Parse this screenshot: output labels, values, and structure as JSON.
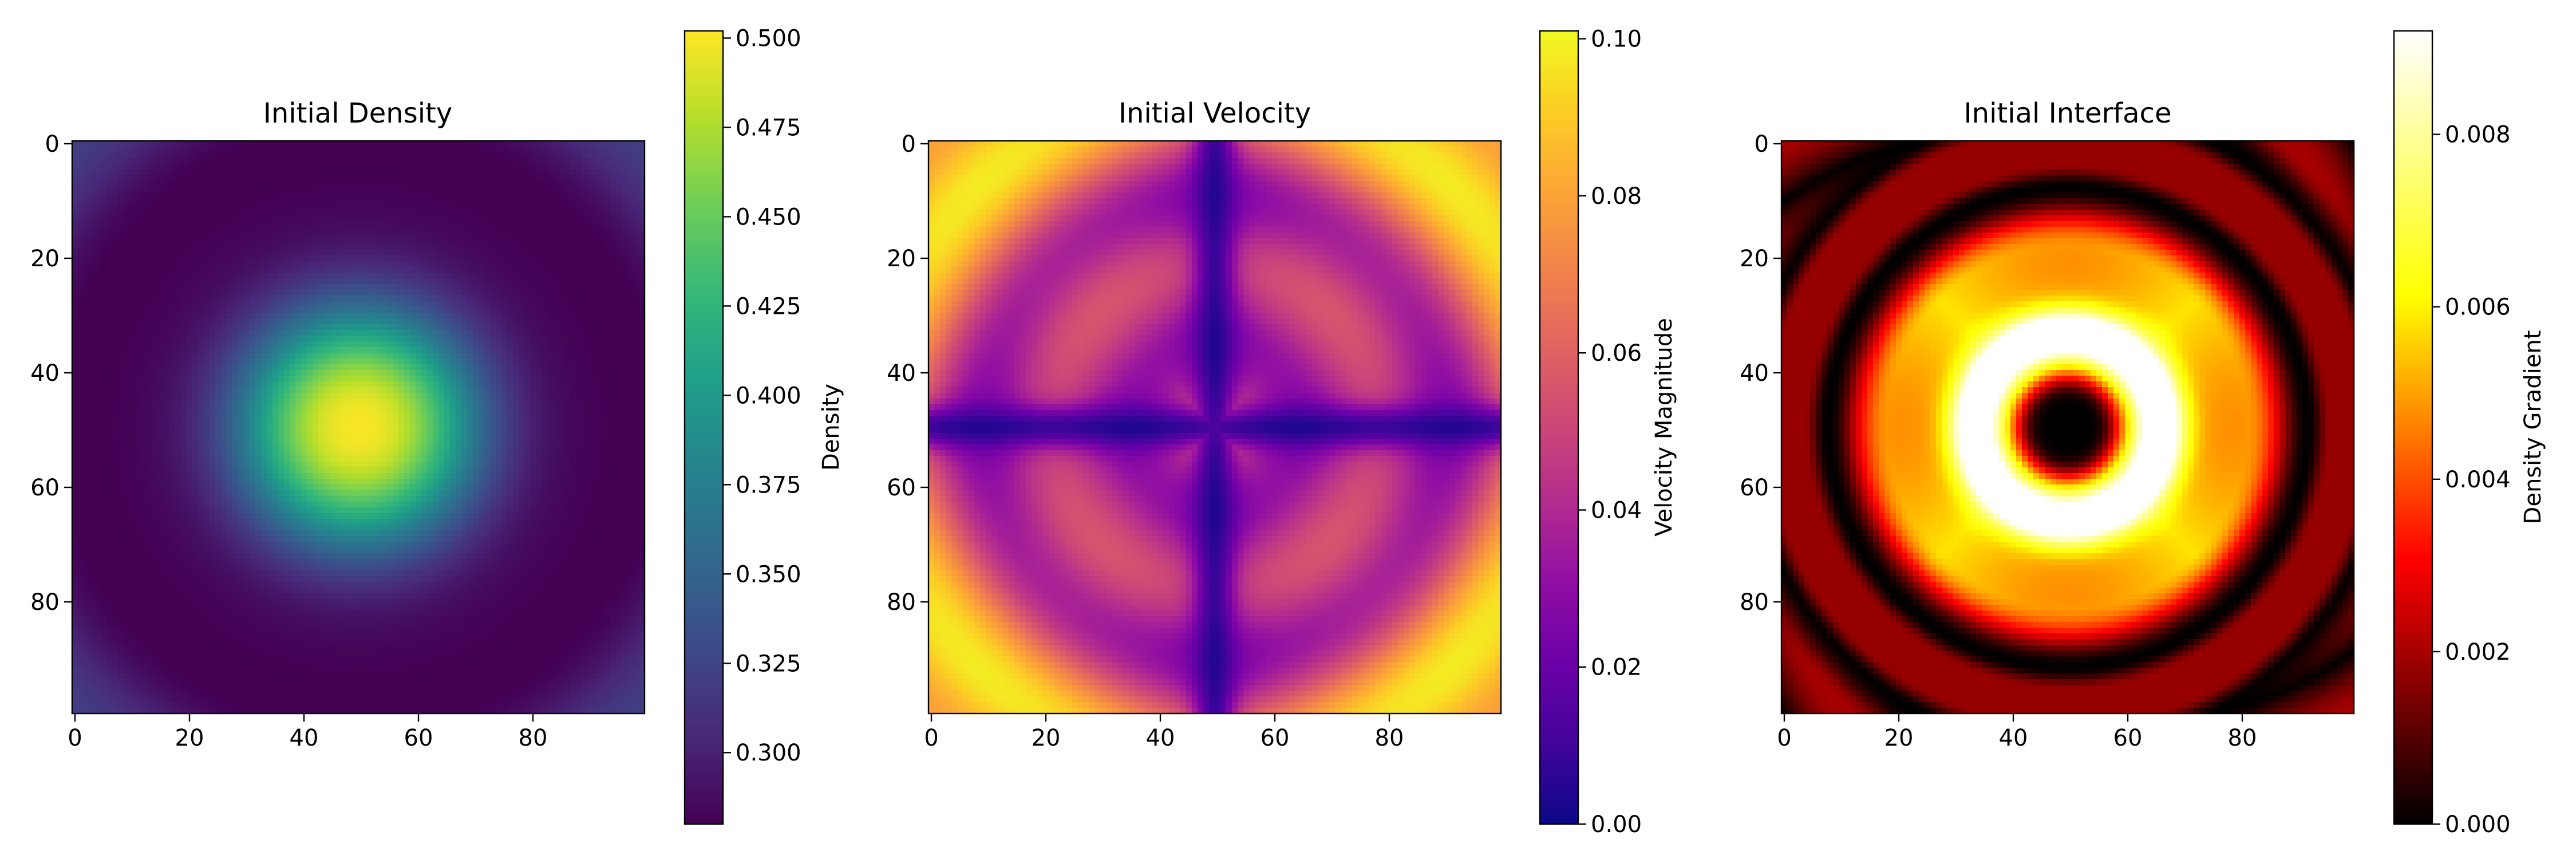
{
  "chart_data": [
    {
      "type": "heatmap",
      "title": "Initial Density",
      "xlim": [
        0,
        99
      ],
      "ylim": [
        99,
        0
      ],
      "xticks": [
        "0",
        "20",
        "40",
        "60",
        "80"
      ],
      "yticks": [
        "0",
        "20",
        "40",
        "60",
        "80"
      ],
      "colormap": "viridis",
      "colorbar": {
        "label": "Density",
        "range": [
          0.28,
          0.502
        ],
        "ticks": [
          "0.300",
          "0.325",
          "0.350",
          "0.375",
          "0.400",
          "0.425",
          "0.450",
          "0.475",
          "0.500"
        ]
      },
      "field": "center 0.50 at (50,50), radial falloff to ~0.28 ring near r=50, rising to ~0.32 at corners"
    },
    {
      "type": "heatmap",
      "title": "Initial Velocity",
      "xlim": [
        0,
        99
      ],
      "ylim": [
        99,
        0
      ],
      "xticks": [
        "0",
        "20",
        "40",
        "60",
        "80"
      ],
      "yticks": [
        "0",
        "20",
        "40",
        "60",
        "80"
      ],
      "colormap": "plasma",
      "colorbar": {
        "label": "Velocity Magnitude",
        "range": [
          0.0,
          0.101
        ],
        "ticks": [
          "0.00",
          "0.02",
          "0.04",
          "0.06",
          "0.08",
          "0.10"
        ]
      },
      "field": "magnitude ~0.1 peaks near (5,30),(30,5) symmetric; near 0 along lines x=50 and y=50"
    },
    {
      "type": "heatmap",
      "title": "Initial Interface",
      "xlim": [
        0,
        99
      ],
      "ylim": [
        99,
        0
      ],
      "xticks": [
        "0",
        "20",
        "40",
        "60",
        "80"
      ],
      "yticks": [
        "0",
        "20",
        "40",
        "60",
        "80"
      ],
      "colormap": "hot",
      "colorbar": {
        "label": "Density Gradient",
        "range": [
          0.0,
          0.0092
        ],
        "ticks": [
          "0.000",
          "0.002",
          "0.004",
          "0.006",
          "0.008"
        ]
      },
      "field": "0 at center, bright ring ~0.009 at r~13, broad ~0.006 band to r~35, dark ring near r~50"
    }
  ]
}
